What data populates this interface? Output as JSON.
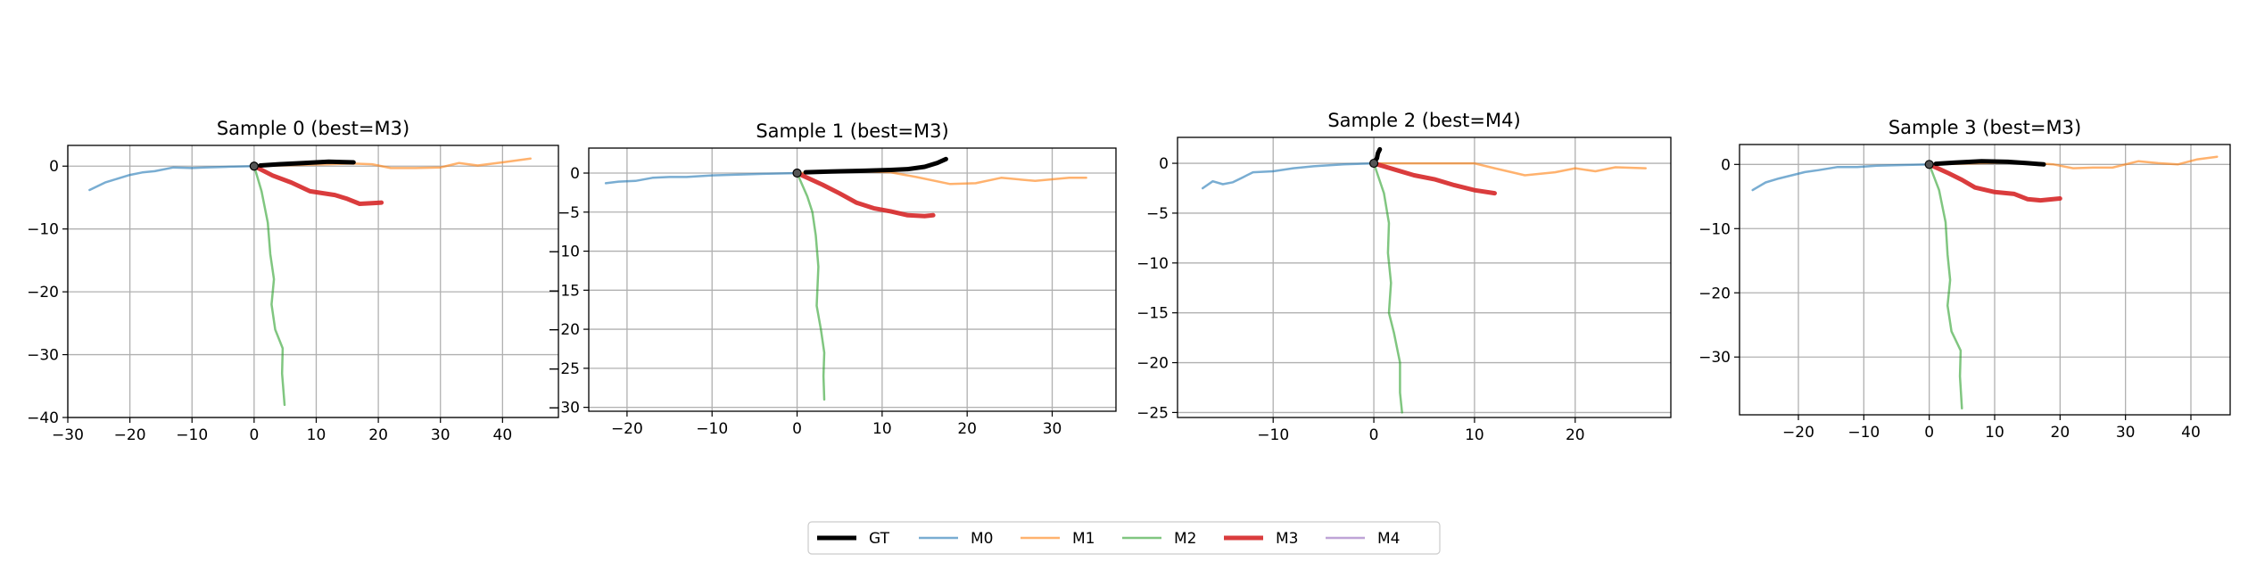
{
  "chart_data": [
    {
      "type": "line",
      "title": "Sample 0 (best=M3)",
      "xlim": [
        -30,
        49
      ],
      "ylim": [
        -40,
        3.3
      ],
      "xticks": [
        -30,
        -20,
        -10,
        0,
        10,
        20,
        30,
        40
      ],
      "yticks": [
        0,
        -10,
        -20,
        -30,
        -40
      ],
      "grid": true,
      "series": [
        {
          "name": "GT",
          "points": [
            [
              1,
              0.1
            ],
            [
              4,
              0.3
            ],
            [
              8,
              0.5
            ],
            [
              12,
              0.7
            ],
            [
              16,
              0.6
            ]
          ]
        },
        {
          "name": "M0",
          "points": [
            [
              0,
              0
            ],
            [
              -4,
              -0.1
            ],
            [
              -8,
              -0.2
            ],
            [
              -10,
              -0.3
            ],
            [
              -13,
              -0.2
            ],
            [
              -16,
              -0.8
            ],
            [
              -18,
              -1.0
            ],
            [
              -20,
              -1.4
            ],
            [
              -22,
              -2.0
            ],
            [
              -24,
              -2.6
            ],
            [
              -26.5,
              -3.8
            ]
          ]
        },
        {
          "name": "M1",
          "points": [
            [
              0,
              0
            ],
            [
              4,
              0.1
            ],
            [
              8,
              0.2
            ],
            [
              12,
              0.3
            ],
            [
              16,
              0.4
            ],
            [
              19,
              0.3
            ],
            [
              22,
              -0.3
            ],
            [
              26,
              -0.3
            ],
            [
              30,
              -0.2
            ],
            [
              33,
              0.5
            ],
            [
              36,
              0.1
            ],
            [
              40,
              0.6
            ],
            [
              44.5,
              1.2
            ]
          ]
        },
        {
          "name": "M2",
          "points": [
            [
              0,
              0
            ],
            [
              1.2,
              -4
            ],
            [
              2.2,
              -9
            ],
            [
              2.6,
              -14
            ],
            [
              3.2,
              -18
            ],
            [
              2.8,
              -22
            ],
            [
              3.4,
              -26
            ],
            [
              4.6,
              -29
            ],
            [
              4.5,
              -33
            ],
            [
              4.9,
              -38
            ]
          ]
        },
        {
          "name": "M3",
          "points": [
            [
              0,
              0
            ],
            [
              3,
              -1.5
            ],
            [
              6,
              -2.6
            ],
            [
              9,
              -4
            ],
            [
              11,
              -4.3
            ],
            [
              13,
              -4.6
            ],
            [
              15,
              -5.2
            ],
            [
              17,
              -6.0
            ],
            [
              19,
              -5.9
            ],
            [
              20.5,
              -5.8
            ]
          ]
        },
        {
          "name": "M4",
          "points": [
            [
              0,
              0
            ],
            [
              0.2,
              -0.1
            ]
          ]
        }
      ]
    },
    {
      "type": "line",
      "title": "Sample 1 (best=M3)",
      "xlim": [
        -24.5,
        37.5
      ],
      "ylim": [
        -30.5,
        3.2
      ],
      "xticks": [
        -20,
        -10,
        0,
        10,
        20,
        30
      ],
      "yticks": [
        0,
        -5,
        -10,
        -15,
        -20,
        -25,
        -30
      ],
      "grid": true,
      "series": [
        {
          "name": "GT",
          "points": [
            [
              1,
              0.1
            ],
            [
              4,
              0.2
            ],
            [
              8,
              0.3
            ],
            [
              11,
              0.4
            ],
            [
              13,
              0.5
            ],
            [
              15,
              0.8
            ],
            [
              16.5,
              1.3
            ],
            [
              17.5,
              1.8
            ]
          ]
        },
        {
          "name": "M0",
          "points": [
            [
              0,
              0
            ],
            [
              -4,
              -0.1
            ],
            [
              -7,
              -0.2
            ],
            [
              -10,
              -0.3
            ],
            [
              -13,
              -0.5
            ],
            [
              -15,
              -0.5
            ],
            [
              -17,
              -0.6
            ],
            [
              -19,
              -1.0
            ],
            [
              -21,
              -1.1
            ],
            [
              -22.5,
              -1.3
            ]
          ]
        },
        {
          "name": "M1",
          "points": [
            [
              0,
              0
            ],
            [
              4,
              0.1
            ],
            [
              8,
              0.2
            ],
            [
              11,
              0.1
            ],
            [
              14,
              -0.5
            ],
            [
              18,
              -1.4
            ],
            [
              21,
              -1.3
            ],
            [
              24,
              -0.6
            ],
            [
              28,
              -1.0
            ],
            [
              32,
              -0.6
            ],
            [
              34,
              -0.6
            ]
          ]
        },
        {
          "name": "M2",
          "points": [
            [
              0,
              0
            ],
            [
              1.2,
              -3
            ],
            [
              1.8,
              -5
            ],
            [
              2.2,
              -8
            ],
            [
              2.5,
              -12
            ],
            [
              2.3,
              -17
            ],
            [
              2.8,
              -20
            ],
            [
              3.2,
              -23
            ],
            [
              3.1,
              -26
            ],
            [
              3.2,
              -29
            ]
          ]
        },
        {
          "name": "M3",
          "points": [
            [
              0,
              0
            ],
            [
              3,
              -1.5
            ],
            [
              5,
              -2.6
            ],
            [
              7,
              -3.8
            ],
            [
              9,
              -4.5
            ],
            [
              11,
              -4.9
            ],
            [
              13,
              -5.4
            ],
            [
              15,
              -5.5
            ],
            [
              16,
              -5.4
            ]
          ]
        },
        {
          "name": "M4",
          "points": [
            [
              0,
              0
            ],
            [
              0.2,
              -0.1
            ]
          ]
        }
      ]
    },
    {
      "type": "line",
      "title": "Sample 2 (best=M4)",
      "xlim": [
        -19.5,
        29.5
      ],
      "ylim": [
        -25.5,
        2.6
      ],
      "xticks": [
        -10,
        0,
        10,
        20
      ],
      "yticks": [
        0,
        -5,
        -10,
        -15,
        -20,
        -25
      ],
      "grid": true,
      "series": [
        {
          "name": "GT",
          "points": [
            [
              0,
              0.1
            ],
            [
              0.3,
              0.5
            ],
            [
              0.4,
              1.0
            ],
            [
              0.6,
              1.4
            ]
          ]
        },
        {
          "name": "M0",
          "points": [
            [
              0,
              0
            ],
            [
              -3,
              -0.1
            ],
            [
              -6,
              -0.3
            ],
            [
              -8,
              -0.5
            ],
            [
              -10,
              -0.8
            ],
            [
              -12,
              -0.9
            ],
            [
              -13,
              -1.4
            ],
            [
              -14,
              -1.9
            ],
            [
              -15,
              -2.1
            ],
            [
              -16,
              -1.8
            ],
            [
              -17,
              -2.5
            ]
          ]
        },
        {
          "name": "M1",
          "points": [
            [
              0,
              0
            ],
            [
              4,
              0
            ],
            [
              8,
              0
            ],
            [
              10,
              0
            ],
            [
              12,
              -0.5
            ],
            [
              15,
              -1.2
            ],
            [
              18,
              -0.9
            ],
            [
              20,
              -0.5
            ],
            [
              22,
              -0.8
            ],
            [
              24,
              -0.4
            ],
            [
              27,
              -0.5
            ]
          ]
        },
        {
          "name": "M2",
          "points": [
            [
              0,
              0
            ],
            [
              1,
              -3
            ],
            [
              1.5,
              -6
            ],
            [
              1.4,
              -9
            ],
            [
              1.7,
              -12
            ],
            [
              1.5,
              -15
            ],
            [
              2.0,
              -17
            ],
            [
              2.6,
              -20
            ],
            [
              2.6,
              -23
            ],
            [
              2.8,
              -25
            ]
          ]
        },
        {
          "name": "M3",
          "points": [
            [
              0,
              0
            ],
            [
              2,
              -0.6
            ],
            [
              4,
              -1.2
            ],
            [
              6,
              -1.6
            ],
            [
              8,
              -2.2
            ],
            [
              10,
              -2.7
            ],
            [
              12,
              -3.0
            ]
          ]
        },
        {
          "name": "M4",
          "points": [
            [
              0,
              0
            ],
            [
              0.2,
              -0.1
            ]
          ]
        }
      ]
    },
    {
      "type": "line",
      "title": "Sample 3 (best=M3)",
      "xlim": [
        -29,
        46
      ],
      "ylim": [
        -39,
        3.1
      ],
      "xticks": [
        -20,
        -10,
        0,
        10,
        20,
        30,
        40
      ],
      "yticks": [
        0,
        -10,
        -20,
        -30
      ],
      "grid": true,
      "series": [
        {
          "name": "GT",
          "points": [
            [
              1,
              0.1
            ],
            [
              4,
              0.3
            ],
            [
              8,
              0.5
            ],
            [
              12,
              0.4
            ],
            [
              15,
              0.2
            ],
            [
              17.5,
              0.0
            ]
          ]
        },
        {
          "name": "M0",
          "points": [
            [
              0,
              0
            ],
            [
              -4,
              -0.1
            ],
            [
              -8,
              -0.2
            ],
            [
              -11,
              -0.4
            ],
            [
              -14,
              -0.4
            ],
            [
              -17,
              -0.9
            ],
            [
              -19,
              -1.2
            ],
            [
              -21,
              -1.7
            ],
            [
              -23,
              -2.2
            ],
            [
              -25,
              -2.8
            ],
            [
              -27,
              -4.0
            ]
          ]
        },
        {
          "name": "M1",
          "points": [
            [
              0,
              0
            ],
            [
              4,
              0.1
            ],
            [
              8,
              0.2
            ],
            [
              12,
              0.3
            ],
            [
              16,
              0.2
            ],
            [
              19,
              0.0
            ],
            [
              22,
              -0.6
            ],
            [
              25,
              -0.5
            ],
            [
              28,
              -0.5
            ],
            [
              32,
              0.5
            ],
            [
              35,
              0.2
            ],
            [
              38,
              0.0
            ],
            [
              41,
              0.8
            ],
            [
              44,
              1.2
            ]
          ]
        },
        {
          "name": "M2",
          "points": [
            [
              0,
              0
            ],
            [
              1.5,
              -4
            ],
            [
              2.5,
              -9
            ],
            [
              2.8,
              -14
            ],
            [
              3.2,
              -18
            ],
            [
              2.8,
              -22
            ],
            [
              3.4,
              -26
            ],
            [
              4.8,
              -29
            ],
            [
              4.7,
              -33
            ],
            [
              5.0,
              -38
            ]
          ]
        },
        {
          "name": "M3",
          "points": [
            [
              0,
              0
            ],
            [
              3,
              -1.4
            ],
            [
              5,
              -2.4
            ],
            [
              7,
              -3.6
            ],
            [
              10,
              -4.3
            ],
            [
              13,
              -4.6
            ],
            [
              15,
              -5.4
            ],
            [
              17,
              -5.6
            ],
            [
              20,
              -5.3
            ]
          ]
        },
        {
          "name": "M4",
          "points": [
            [
              0,
              0
            ],
            [
              0.2,
              -0.1
            ]
          ]
        }
      ]
    }
  ],
  "legend": {
    "placement": "bottom-center",
    "items": [
      {
        "name": "GT",
        "color": "#000000"
      },
      {
        "name": "M0",
        "color": "#1f77b4"
      },
      {
        "name": "M1",
        "color": "#ff7f0e"
      },
      {
        "name": "M2",
        "color": "#2ca02c"
      },
      {
        "name": "M3",
        "color": "#d62728"
      },
      {
        "name": "M4",
        "color": "#9467bd"
      }
    ]
  },
  "colors": {
    "GT": "#000000",
    "M0": "#1f77b4",
    "M1": "#ff7f0e",
    "M2": "#2ca02c",
    "M3": "#d62728",
    "M4": "#9467bd",
    "grid": "#b0b0b0",
    "axes": "#000000"
  }
}
